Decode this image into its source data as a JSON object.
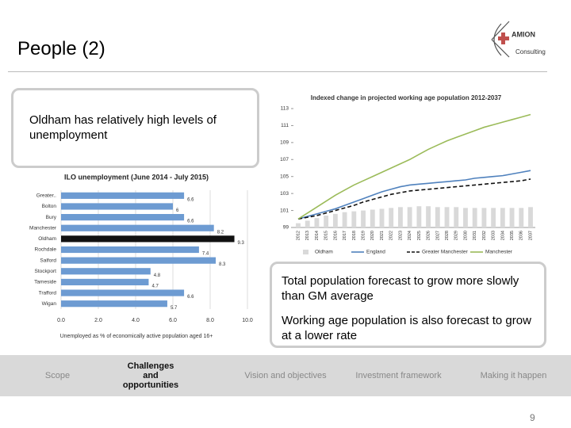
{
  "header": {
    "title": "People (2)",
    "logo": {
      "name": "AMION",
      "tagline": "Consulting"
    }
  },
  "text_boxes": [
    "Oldham has relatively high levels of unemployment",
    "Total population forecast to grow more slowly than GM average",
    "Working age population is also forecast to grow at a lower rate"
  ],
  "chart_data": [
    {
      "type": "bar",
      "orientation": "horizontal",
      "title": "ILO unemployment (June 2014 - July 2015)",
      "categories": [
        "Greater..",
        "Bolton",
        "Bury",
        "Manchester",
        "Oldham",
        "Rochdale",
        "Salford",
        "Stockport",
        "Tameside",
        "Trafford",
        "Wigan"
      ],
      "values": [
        6.6,
        6.0,
        6.6,
        8.2,
        9.3,
        7.4,
        8.3,
        4.8,
        4.7,
        6.6,
        5.7
      ],
      "colors": [
        "#6d9bd2",
        "#6d9bd2",
        "#6d9bd2",
        "#6d9bd2",
        "#111111",
        "#6d9bd2",
        "#6d9bd2",
        "#6d9bd2",
        "#6d9bd2",
        "#6d9bd2",
        "#6d9bd2"
      ],
      "xlim": [
        0,
        10
      ],
      "xticks": [
        {
          "value": 0,
          "label": "0.0"
        },
        {
          "value": 2,
          "label": "2.0"
        },
        {
          "value": 4,
          "label": "4.0"
        },
        {
          "value": 6,
          "label": "6.0"
        },
        {
          "value": 8,
          "label": "8.0"
        },
        {
          "value": 10,
          "label": "10.0"
        }
      ],
      "xlabel": "Unemployed as % of economically active population aged 16+",
      "grid": true
    },
    {
      "type": "line",
      "title": "Indexed change in projected working age population 2012-2037",
      "x": [
        2012,
        2013,
        2014,
        2015,
        2016,
        2017,
        2018,
        2019,
        2020,
        2021,
        2022,
        2023,
        2024,
        2025,
        2026,
        2027,
        2028,
        2029,
        2030,
        2031,
        2032,
        2033,
        2034,
        2035,
        2036,
        2037
      ],
      "series": [
        {
          "name": "Oldham",
          "type": "bar",
          "color": "#d9d9d9",
          "values": [
            99.5,
            99.8,
            100.1,
            100.4,
            100.6,
            100.8,
            100.9,
            101.0,
            101.1,
            101.2,
            101.3,
            101.4,
            101.4,
            101.5,
            101.5,
            101.4,
            101.4,
            101.4,
            101.3,
            101.3,
            101.3,
            101.3,
            101.3,
            101.3,
            101.3,
            101.4
          ]
        },
        {
          "name": "England",
          "color": "#4f81bd",
          "values": [
            100,
            100.3,
            100.6,
            100.9,
            101.2,
            101.6,
            102.0,
            102.4,
            102.8,
            103.2,
            103.5,
            103.8,
            104.0,
            104.1,
            104.2,
            104.3,
            104.4,
            104.5,
            104.6,
            104.8,
            104.9,
            105.0,
            105.1,
            105.3,
            105.5,
            105.7
          ]
        },
        {
          "name": "Greater Manchester",
          "color": "#111111",
          "dashed": true,
          "values": [
            100,
            100.2,
            100.4,
            100.7,
            101.0,
            101.3,
            101.6,
            102.0,
            102.3,
            102.6,
            102.9,
            103.1,
            103.3,
            103.4,
            103.5,
            103.6,
            103.7,
            103.8,
            103.9,
            104.0,
            104.1,
            104.2,
            104.3,
            104.4,
            104.5,
            104.7
          ]
        },
        {
          "name": "Manchester",
          "color": "#9bbb59",
          "values": [
            100,
            100.7,
            101.4,
            102.1,
            102.8,
            103.4,
            104.0,
            104.5,
            105.0,
            105.5,
            106.0,
            106.5,
            107.0,
            107.6,
            108.2,
            108.7,
            109.2,
            109.6,
            110.0,
            110.4,
            110.8,
            111.1,
            111.4,
            111.7,
            112.0,
            112.3
          ]
        }
      ],
      "ylim": [
        99,
        113
      ],
      "yticks": [
        99,
        101,
        103,
        105,
        107,
        109,
        111,
        113
      ]
    }
  ],
  "nav": [
    "Scope",
    "Challenges and opportunities",
    "Vision and objectives",
    "Investment framework",
    "Making it happen"
  ],
  "nav_active": 1,
  "page_number": "9"
}
